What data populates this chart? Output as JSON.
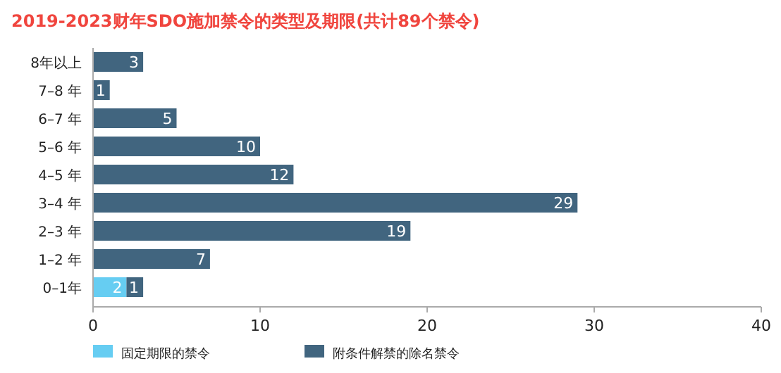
{
  "chart_data": {
    "type": "bar",
    "orientation": "horizontal",
    "stacked": true,
    "title": "2019-2023财年SDO施加禁令的类型及期限(共计89个禁令)",
    "categories": [
      "8年以上",
      "7–8 年",
      "6–7 年",
      "5–6 年",
      "4–5 年",
      "3–4 年",
      "2–3 年",
      "1–2 年",
      "0–1年"
    ],
    "series": [
      {
        "name": "固定期限的禁令",
        "color": "#66cdf2",
        "values": [
          null,
          null,
          null,
          null,
          null,
          null,
          null,
          null,
          2
        ]
      },
      {
        "name": "附条件解禁的除名禁令",
        "color": "#41657f",
        "values": [
          3,
          1,
          5,
          10,
          12,
          29,
          19,
          7,
          1
        ]
      }
    ],
    "xlim": [
      0,
      40
    ],
    "xticks": [
      0,
      10,
      20,
      30,
      40
    ],
    "data_labels": true,
    "legend": "bottom",
    "grid": false
  }
}
